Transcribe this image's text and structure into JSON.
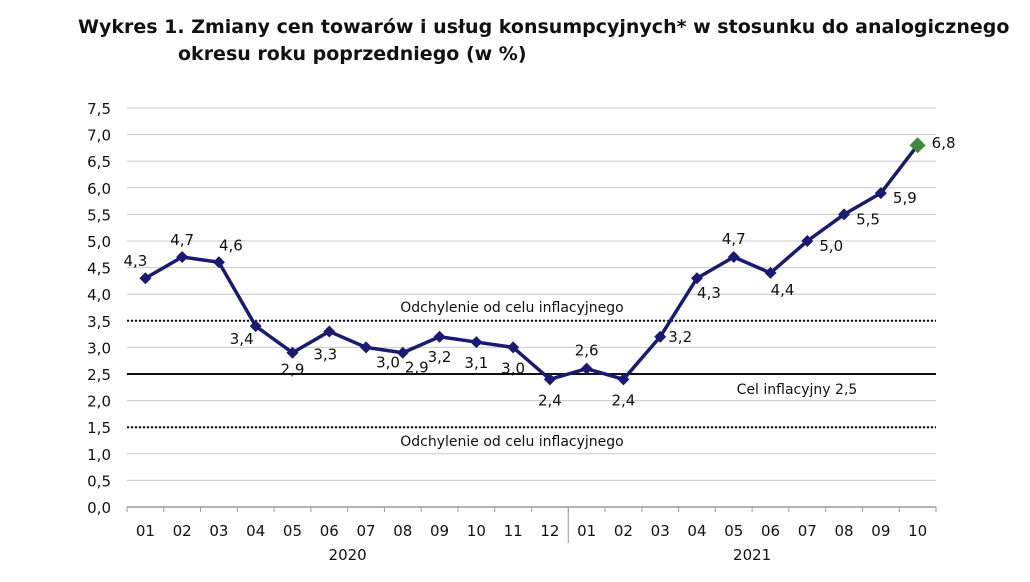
{
  "chart_data": {
    "type": "line",
    "title_line1": "Wykres 1. Zmiany cen towarów i usług konsumpcyjnych* w stosunku do analogicznego",
    "title_line2": "okresu roku poprzedniego (w %)",
    "categories": [
      "01",
      "02",
      "03",
      "04",
      "05",
      "06",
      "07",
      "08",
      "09",
      "10",
      "11",
      "12",
      "01",
      "02",
      "03",
      "04",
      "05",
      "06",
      "07",
      "08",
      "09",
      "10"
    ],
    "groups": [
      {
        "label": "2020",
        "count": 12
      },
      {
        "label": "2021",
        "count": 10
      }
    ],
    "values": [
      4.3,
      4.7,
      4.6,
      3.4,
      2.9,
      3.3,
      3.0,
      2.9,
      3.2,
      3.1,
      3.0,
      2.4,
      2.6,
      2.4,
      3.2,
      4.3,
      4.7,
      4.4,
      5.0,
      5.5,
      5.9,
      6.8
    ],
    "data_labels": [
      "4,3",
      "4,7",
      "4,6",
      "3,4",
      "2,9",
      "3,3",
      "3,0",
      "2,9",
      "3,2",
      "3,1",
      "3,0",
      "2,4",
      "2,6",
      "2,4",
      "3,2",
      "4,3",
      "4,7",
      "4,4",
      "5,0",
      "5,5",
      "5,9",
      "6,8"
    ],
    "ylim": [
      0,
      7.5
    ],
    "yticks": [
      "0,0",
      "0,5",
      "1,0",
      "1,5",
      "2,0",
      "2,5",
      "3,0",
      "3,5",
      "4,0",
      "4,5",
      "5,0",
      "5,5",
      "6,0",
      "6,5",
      "7,0",
      "7,5"
    ],
    "grid": true,
    "reference_lines": [
      {
        "value": 3.5,
        "label": "Odchylenie od celu inflacyjnego",
        "style": "dotted"
      },
      {
        "value": 2.5,
        "label": "Cel inflacyjny 2,5",
        "style": "solid"
      },
      {
        "value": 1.5,
        "label": "Odchylenie od celu inflacyjnego",
        "style": "dotted"
      }
    ],
    "colors": {
      "line": "#1a1a72",
      "last_point": "#3f8a3f",
      "grid": "#c8c8c8"
    }
  }
}
